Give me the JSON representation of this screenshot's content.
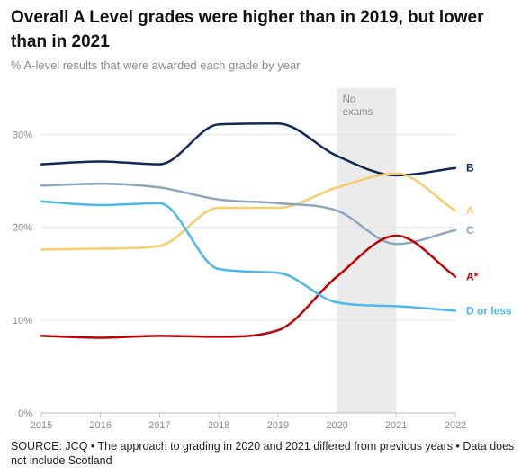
{
  "title": "Overall A Level grades were higher than in 2019, but lower than in 2021",
  "subtitle": "% A-level results that were awarded each grade by year",
  "source": "SOURCE: JCQ • The approach to grading in 2020 and 2021 differed from previous years • Data does not include Scotland",
  "chart_data": {
    "type": "line",
    "x": [
      2015,
      2016,
      2017,
      2018,
      2019,
      2020,
      2021,
      2022
    ],
    "xlim": [
      2015,
      2022
    ],
    "ylim": [
      0,
      35
    ],
    "yticks": [
      0,
      10,
      20,
      30
    ],
    "ytick_labels": [
      "0%",
      "10%",
      "20%",
      "30%"
    ],
    "xtick_labels": [
      "2015",
      "2016",
      "2017",
      "2018",
      "2019",
      "2020",
      "2021",
      "2022"
    ],
    "grid": true,
    "shaded_region": {
      "x": [
        2020,
        2021
      ],
      "label_line1": "No",
      "label_line2": "exams"
    },
    "series": [
      {
        "name": "B",
        "color": "#0f2a56",
        "values": [
          26.8,
          27.1,
          26.8,
          31.1,
          31.2,
          27.7,
          25.6,
          26.4
        ]
      },
      {
        "name": "A",
        "color": "#f7cd6b",
        "values": [
          17.6,
          17.7,
          18.0,
          22.1,
          22.1,
          24.3,
          25.8,
          21.8
        ]
      },
      {
        "name": "C",
        "color": "#8ca6bf",
        "values": [
          24.5,
          24.7,
          24.3,
          23.0,
          22.6,
          21.8,
          18.2,
          19.7
        ]
      },
      {
        "name": "A*",
        "color": "#c00000",
        "values": [
          8.3,
          8.1,
          8.3,
          8.2,
          8.9,
          14.7,
          19.1,
          14.7
        ]
      },
      {
        "name": "D or less",
        "color": "#4cb9ee",
        "values": [
          22.8,
          22.4,
          22.6,
          15.5,
          15.1,
          11.9,
          11.5,
          11.0
        ]
      }
    ]
  }
}
